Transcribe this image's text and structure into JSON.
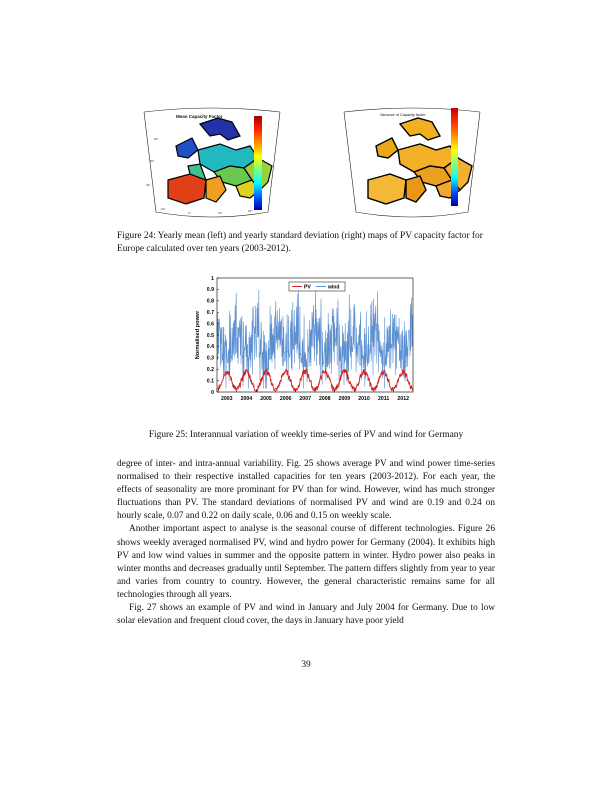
{
  "figure24": {
    "left_title": "Mean Capacity Factor",
    "right_title": "Variance of Capacity factor",
    "caption": "Figure 24: Yearly mean (left) and yearly standard deviation (right) maps of PV capacity factor for Europe calculated over ten years (2003-2012)."
  },
  "figure25": {
    "caption": "Figure 25: Interannual variation of weekly time-series of PV and wind for Germany"
  },
  "chart_data": {
    "type": "line",
    "ylabel": "Normalised power",
    "xlabel": "",
    "ylim": [
      0,
      1
    ],
    "yticks": [
      "0",
      "0.1",
      "0.2",
      "0.3",
      "0.4",
      "0.5",
      "0.6",
      "0.7",
      "0.8",
      "0.9",
      "1"
    ],
    "x_tick_labels": [
      "2003",
      "2004",
      "2005",
      "2006",
      "2007",
      "2008",
      "2009",
      "2010",
      "2011",
      "2012"
    ],
    "xlim": [
      2003,
      2013
    ],
    "legend_position": "top-center",
    "series": [
      {
        "name": "PV",
        "color": "#d62020",
        "description_of_pattern": "seasonal weekly series",
        "values_weekly_approx": [
          0.02,
          0.03,
          0.05,
          0.08,
          0.12,
          0.15,
          0.18,
          0.2,
          0.19,
          0.17,
          0.14,
          0.1,
          0.06,
          0.03,
          0.02
        ]
      },
      {
        "name": "wind",
        "color": "#5b8fd0",
        "values_weekly_approx": [
          0.4,
          0.55,
          0.3,
          0.62,
          0.25,
          0.5,
          0.7,
          0.35,
          0.45,
          0.2,
          0.6,
          0.3,
          0.5,
          0.4,
          0.35
        ]
      }
    ]
  },
  "paragraphs": [
    "degree of inter- and intra-annual variability. Fig. 25 shows average PV and wind power time-series normalised to their respective installed capacities for ten years (2003-2012). For each year, the effects of seasonality are more prominant for PV than for wind. However, wind has much stronger fluctuations than PV. The standard deviations of normalised PV and wind are 0.19 and 0.24 on hourly scale, 0.07 and 0.22 on daily scale, 0.06 and 0.15 on weekly scale.",
    "Another important aspect to analyse is the seasonal course of different technologies. Figure 26 shows weekly averaged normalised PV, wind and hydro power for Germany (2004). It exhibits high PV and low wind values in summer and the opposite pattern in winter. Hydro power also peaks in winter months and decreases gradually until September. The pattern differs slightly from year to year and varies from country to country. However, the general characteristic remains same for all technologies through all years.",
    "Fig. 27 shows an example of PV and wind in January and July 2004 for Germany. Due to low solar elevation and frequent cloud cover, the days in January have poor yield"
  ],
  "page_number": "39"
}
